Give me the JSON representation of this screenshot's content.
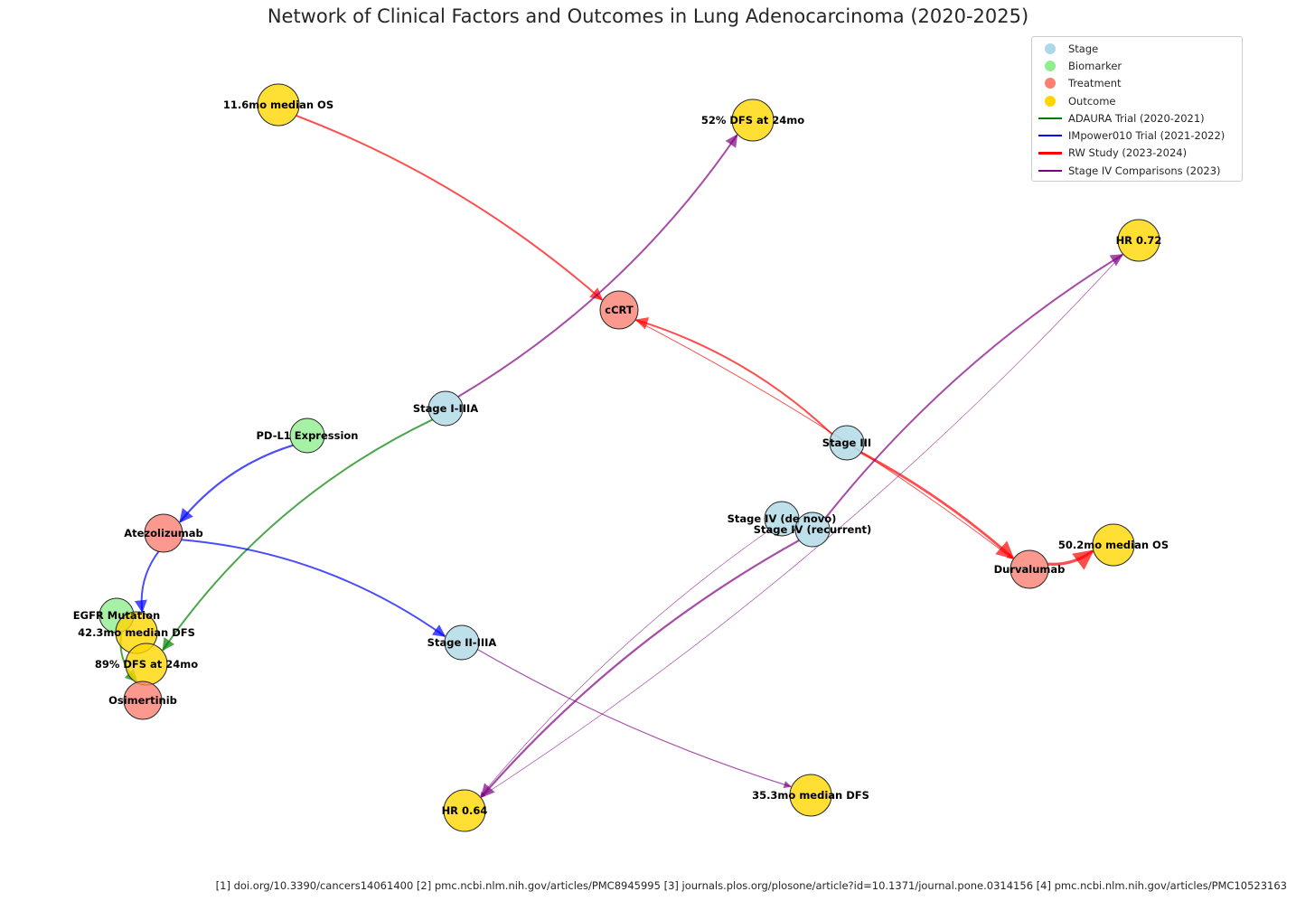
{
  "title": "Network of Clinical Factors and Outcomes in Lung Adenocarcinoma (2020-2025)",
  "footer": "[1] doi.org/10.3390/cancers14061400 [2] pmc.ncbi.nlm.nih.gov/articles/PMC8945995 [3] journals.plos.org/plosone/article?id=10.1371/journal.pone.0314156 [4] pmc.ncbi.nlm.nih.gov/articles/PMC10523163",
  "colors": {
    "Stage": "#add8e6",
    "Biomarker": "#90ee90",
    "Treatment": "#fa8072",
    "Outcome": "#ffd700"
  },
  "legend": {
    "node_types": [
      {
        "label": "Stage",
        "color": "#add8e6"
      },
      {
        "label": "Biomarker",
        "color": "#90ee90"
      },
      {
        "label": "Treatment",
        "color": "#fa8072"
      },
      {
        "label": "Outcome",
        "color": "#ffd700"
      }
    ],
    "edge_types": [
      {
        "label": "ADAURA Trial (2020-2021)",
        "color": "#008000"
      },
      {
        "label": "IMpower010 Trial (2021-2022)",
        "color": "#0000ff"
      },
      {
        "label": "RW Study (2023-2024)",
        "color": "#ff0000"
      },
      {
        "label": "Stage IV Comparisons (2023)",
        "color": "#800080"
      }
    ]
  },
  "nodes": [
    {
      "id": "11.6mo median OS",
      "type": "Outcome"
    },
    {
      "id": "52% DFS at 24mo",
      "type": "Outcome"
    },
    {
      "id": "HR 0.72",
      "type": "Outcome"
    },
    {
      "id": "cCRT",
      "type": "Treatment"
    },
    {
      "id": "Stage I-IIIA",
      "type": "Stage"
    },
    {
      "id": "PD-L1 Expression",
      "type": "Biomarker"
    },
    {
      "id": "Stage III",
      "type": "Stage"
    },
    {
      "id": "Stage IV (de novo)",
      "type": "Stage"
    },
    {
      "id": "Stage IV (recurrent)",
      "type": "Stage"
    },
    {
      "id": "Atezolizumab",
      "type": "Treatment"
    },
    {
      "id": "50.2mo median OS",
      "type": "Outcome"
    },
    {
      "id": "Durvalumab",
      "type": "Treatment"
    },
    {
      "id": "EGFR Mutation",
      "type": "Biomarker"
    },
    {
      "id": "42.3mo median DFS",
      "type": "Outcome"
    },
    {
      "id": "Stage II-IIIA",
      "type": "Stage"
    },
    {
      "id": "89% DFS at 24mo",
      "type": "Outcome"
    },
    {
      "id": "Osimertinib",
      "type": "Treatment"
    },
    {
      "id": "35.3mo median DFS",
      "type": "Outcome"
    },
    {
      "id": "HR 0.64",
      "type": "Outcome"
    }
  ],
  "edges": [
    {
      "source": "EGFR Mutation",
      "target": "Osimertinib",
      "group": "ADAURA Trial (2020-2021)"
    },
    {
      "source": "Stage I-IIIA",
      "target": "89% DFS at 24mo",
      "group": "ADAURA Trial (2020-2021)"
    },
    {
      "source": "PD-L1 Expression",
      "target": "Atezolizumab",
      "group": "IMpower010 Trial (2021-2022)"
    },
    {
      "source": "Atezolizumab",
      "target": "42.3mo median DFS",
      "group": "IMpower010 Trial (2021-2022)"
    },
    {
      "source": "Atezolizumab",
      "target": "Stage II-IIIA",
      "group": "IMpower010 Trial (2021-2022)"
    },
    {
      "source": "Stage III",
      "target": "cCRT",
      "group": "RW Study (2023-2024)"
    },
    {
      "source": "Stage III",
      "target": "Durvalumab",
      "group": "RW Study (2023-2024)"
    },
    {
      "source": "cCRT",
      "target": "Durvalumab",
      "group": "RW Study (2023-2024)"
    },
    {
      "source": "Durvalumab",
      "target": "50.2mo median OS",
      "group": "RW Study (2023-2024)"
    },
    {
      "source": "11.6mo median OS",
      "target": "cCRT",
      "group": "RW Study (2023-2024)"
    },
    {
      "source": "Stage I-IIIA",
      "target": "52% DFS at 24mo",
      "group": "Stage IV Comparisons (2023)"
    },
    {
      "source": "Stage IV (recurrent)",
      "target": "HR 0.72",
      "group": "Stage IV Comparisons (2023)"
    },
    {
      "source": "Stage IV (recurrent)",
      "target": "HR 0.64",
      "group": "Stage IV Comparisons (2023)"
    },
    {
      "source": "Stage IV (de novo)",
      "target": "HR 0.64",
      "group": "Stage IV Comparisons (2023)"
    },
    {
      "source": "HR 0.72",
      "target": "HR 0.64",
      "group": "Stage IV Comparisons (2023)"
    },
    {
      "source": "Stage II-IIIA",
      "target": "35.3mo median DFS",
      "group": "Stage IV Comparisons (2023)"
    }
  ]
}
